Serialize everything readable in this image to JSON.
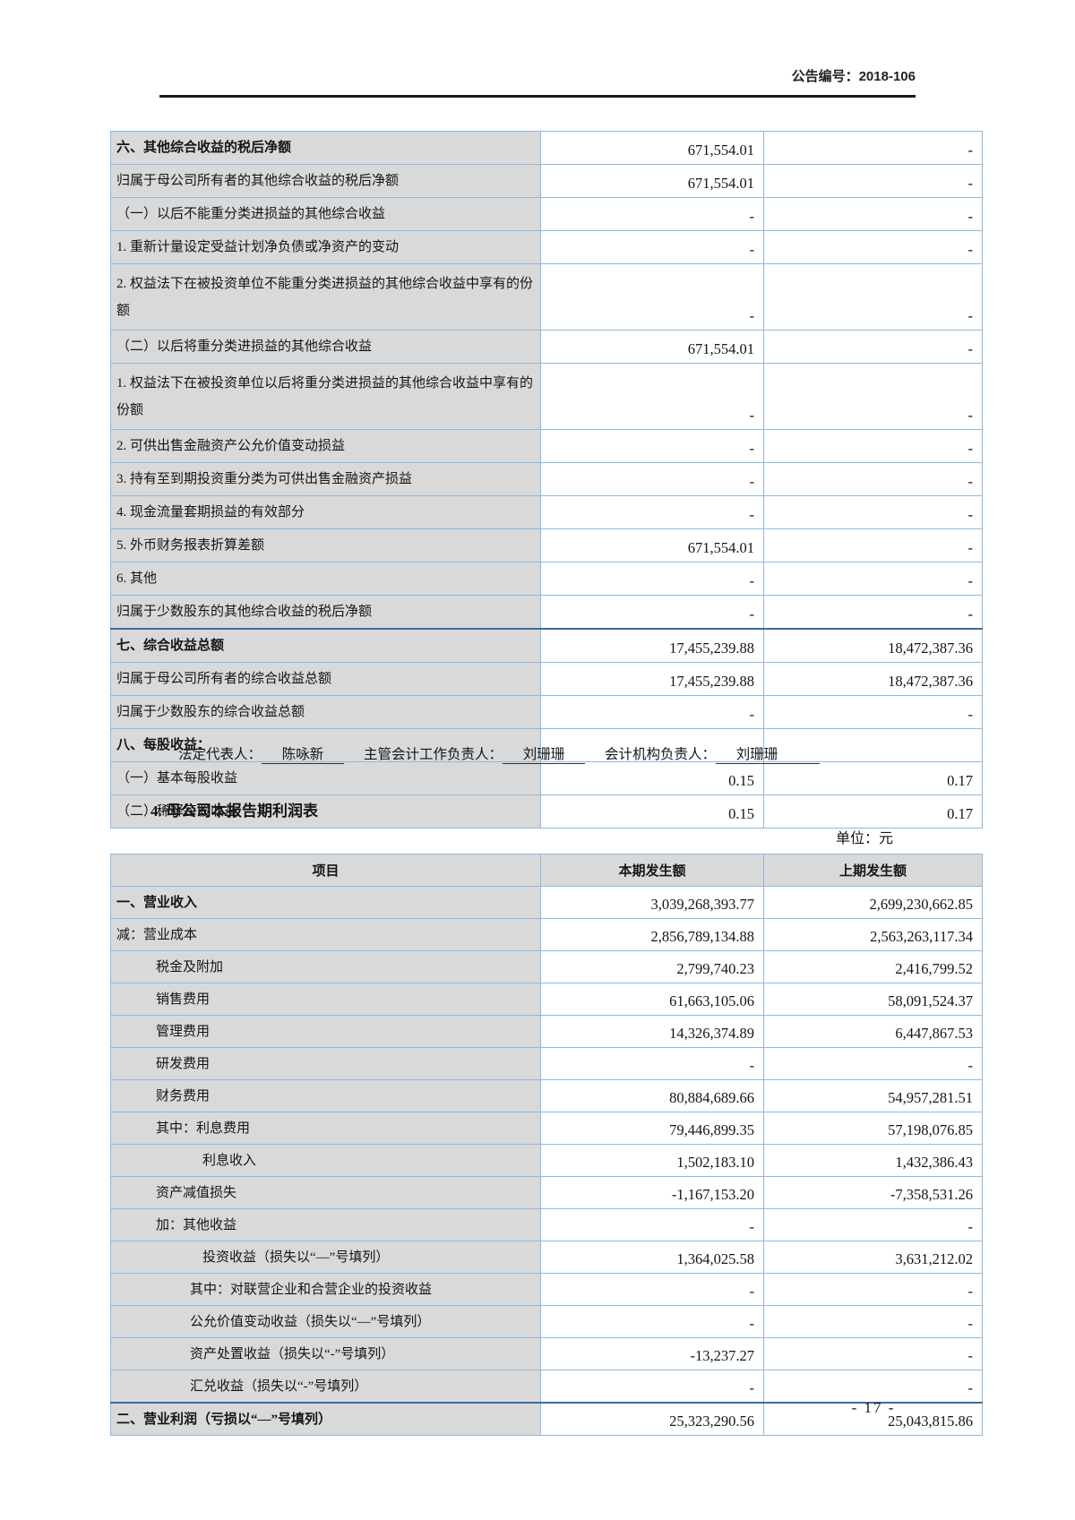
{
  "page": {
    "doc_number": "公告编号：2018-106",
    "page_number": "- 17 -"
  },
  "colors": {
    "table_border": "#8fb9e0",
    "label_cell_bg": "#d9d9d9",
    "total_row_separator": "#41699c",
    "header_rule": "#1a1a1a"
  },
  "table1": {
    "rows": [
      {
        "label": "六、其他综合收益的税后净额",
        "current": "671,554.01",
        "previous": "-",
        "bold": true
      },
      {
        "label": "归属于母公司所有者的其他综合收益的税后净额",
        "current": "671,554.01",
        "previous": "-"
      },
      {
        "label": "（一）以后不能重分类进损益的其他综合收益",
        "current": "-",
        "previous": "-"
      },
      {
        "label": "1. 重新计量设定受益计划净负债或净资产的变动",
        "current": "-",
        "previous": "-"
      },
      {
        "label": "2. 权益法下在被投资单位不能重分类进损益的其他综合收益中享有的份额",
        "current": "-",
        "previous": "-",
        "tall": true
      },
      {
        "label": "（二）以后将重分类进损益的其他综合收益",
        "current": "671,554.01",
        "previous": "-"
      },
      {
        "label": "1. 权益法下在被投资单位以后将重分类进损益的其他综合收益中享有的份额",
        "current": "-",
        "previous": "-",
        "tall": true
      },
      {
        "label": "2. 可供出售金融资产公允价值变动损益",
        "current": "-",
        "previous": "-"
      },
      {
        "label": "3. 持有至到期投资重分类为可供出售金融资产损益",
        "current": "-",
        "previous": "-"
      },
      {
        "label": "4. 现金流量套期损益的有效部分",
        "current": "-",
        "previous": "-"
      },
      {
        "label": "5. 外币财务报表折算差额",
        "current": "671,554.01",
        "previous": "-"
      },
      {
        "label": "6. 其他",
        "current": "-",
        "previous": "-"
      },
      {
        "label": "归属于少数股东的其他综合收益的税后净额",
        "current": "-",
        "previous": "-"
      },
      {
        "label": "七、综合收益总额",
        "current": "17,455,239.88",
        "previous": "18,472,387.36",
        "bold": true,
        "thick": true
      },
      {
        "label": "归属于母公司所有者的综合收益总额",
        "current": "17,455,239.88",
        "previous": "18,472,387.36"
      },
      {
        "label": "归属于少数股东的综合收益总额",
        "current": "-",
        "previous": "-"
      },
      {
        "label": "八、每股收益：",
        "current": "",
        "previous": "",
        "bold": true
      },
      {
        "label": "（一）基本每股收益",
        "current": "0.15",
        "previous": "0.17"
      },
      {
        "label": "（二）稀释每股收益",
        "current": "0.15",
        "previous": "0.17"
      }
    ]
  },
  "signature": {
    "legal_rep_label": "法定代表人：",
    "legal_rep_name": "陈咏新",
    "chief_accountant_label": "主管会计工作负责人：",
    "chief_accountant_name": "刘珊珊",
    "accounting_org_label": "会计机构负责人：",
    "accounting_org_name": "刘珊珊"
  },
  "section": {
    "heading": "4. 母公司本报告期利润表",
    "unit_label": "单位：元"
  },
  "table2": {
    "headers": [
      "项目",
      "本期发生额",
      "上期发生额"
    ],
    "rows": [
      {
        "label": "一、营业收入",
        "current": "3,039,268,393.77",
        "previous": "2,699,230,662.85",
        "bold": true
      },
      {
        "label": "减：营业成本",
        "current": "2,856,789,134.88",
        "previous": "2,563,263,117.34"
      },
      {
        "label": "税金及附加",
        "current": "2,799,740.23",
        "previous": "2,416,799.52",
        "indent": 1
      },
      {
        "label": "销售费用",
        "current": "61,663,105.06",
        "previous": "58,091,524.37",
        "indent": 1
      },
      {
        "label": "管理费用",
        "current": "14,326,374.89",
        "previous": "6,447,867.53",
        "indent": 1
      },
      {
        "label": "研发费用",
        "current": "-",
        "previous": "-",
        "indent": 1
      },
      {
        "label": "财务费用",
        "current": "80,884,689.66",
        "previous": "54,957,281.51",
        "indent": 1
      },
      {
        "label": "其中：利息费用",
        "current": "79,446,899.35",
        "previous": "57,198,076.85",
        "indent": 1
      },
      {
        "label": "利息收入",
        "current": "1,502,183.10",
        "previous": "1,432,386.43",
        "indent": 3
      },
      {
        "label": "资产减值损失",
        "current": "-1,167,153.20",
        "previous": "-7,358,531.26",
        "indent": 1
      },
      {
        "label": "加：其他收益",
        "current": "-",
        "previous": "-",
        "indent": 1
      },
      {
        "label": "投资收益（损失以“—”号填列）",
        "current": "1,364,025.58",
        "previous": "3,631,212.02",
        "indent": 3
      },
      {
        "label": "其中：对联营企业和合营企业的投资收益",
        "current": "-",
        "previous": "-",
        "indent": 2
      },
      {
        "label": "公允价值变动收益（损失以“—”号填列）",
        "current": "-",
        "previous": "-",
        "indent": 2
      },
      {
        "label": "资产处置收益（损失以“-”号填列）",
        "current": "-13,237.27",
        "previous": "-",
        "indent": 2
      },
      {
        "label": "汇兑收益（损失以“-”号填列）",
        "current": "-",
        "previous": "-",
        "indent": 2
      },
      {
        "label": "二、营业利润（亏损以“—”号填列）",
        "current": "25,323,290.56",
        "previous": "25,043,815.86",
        "bold": true,
        "thick": true
      }
    ]
  }
}
